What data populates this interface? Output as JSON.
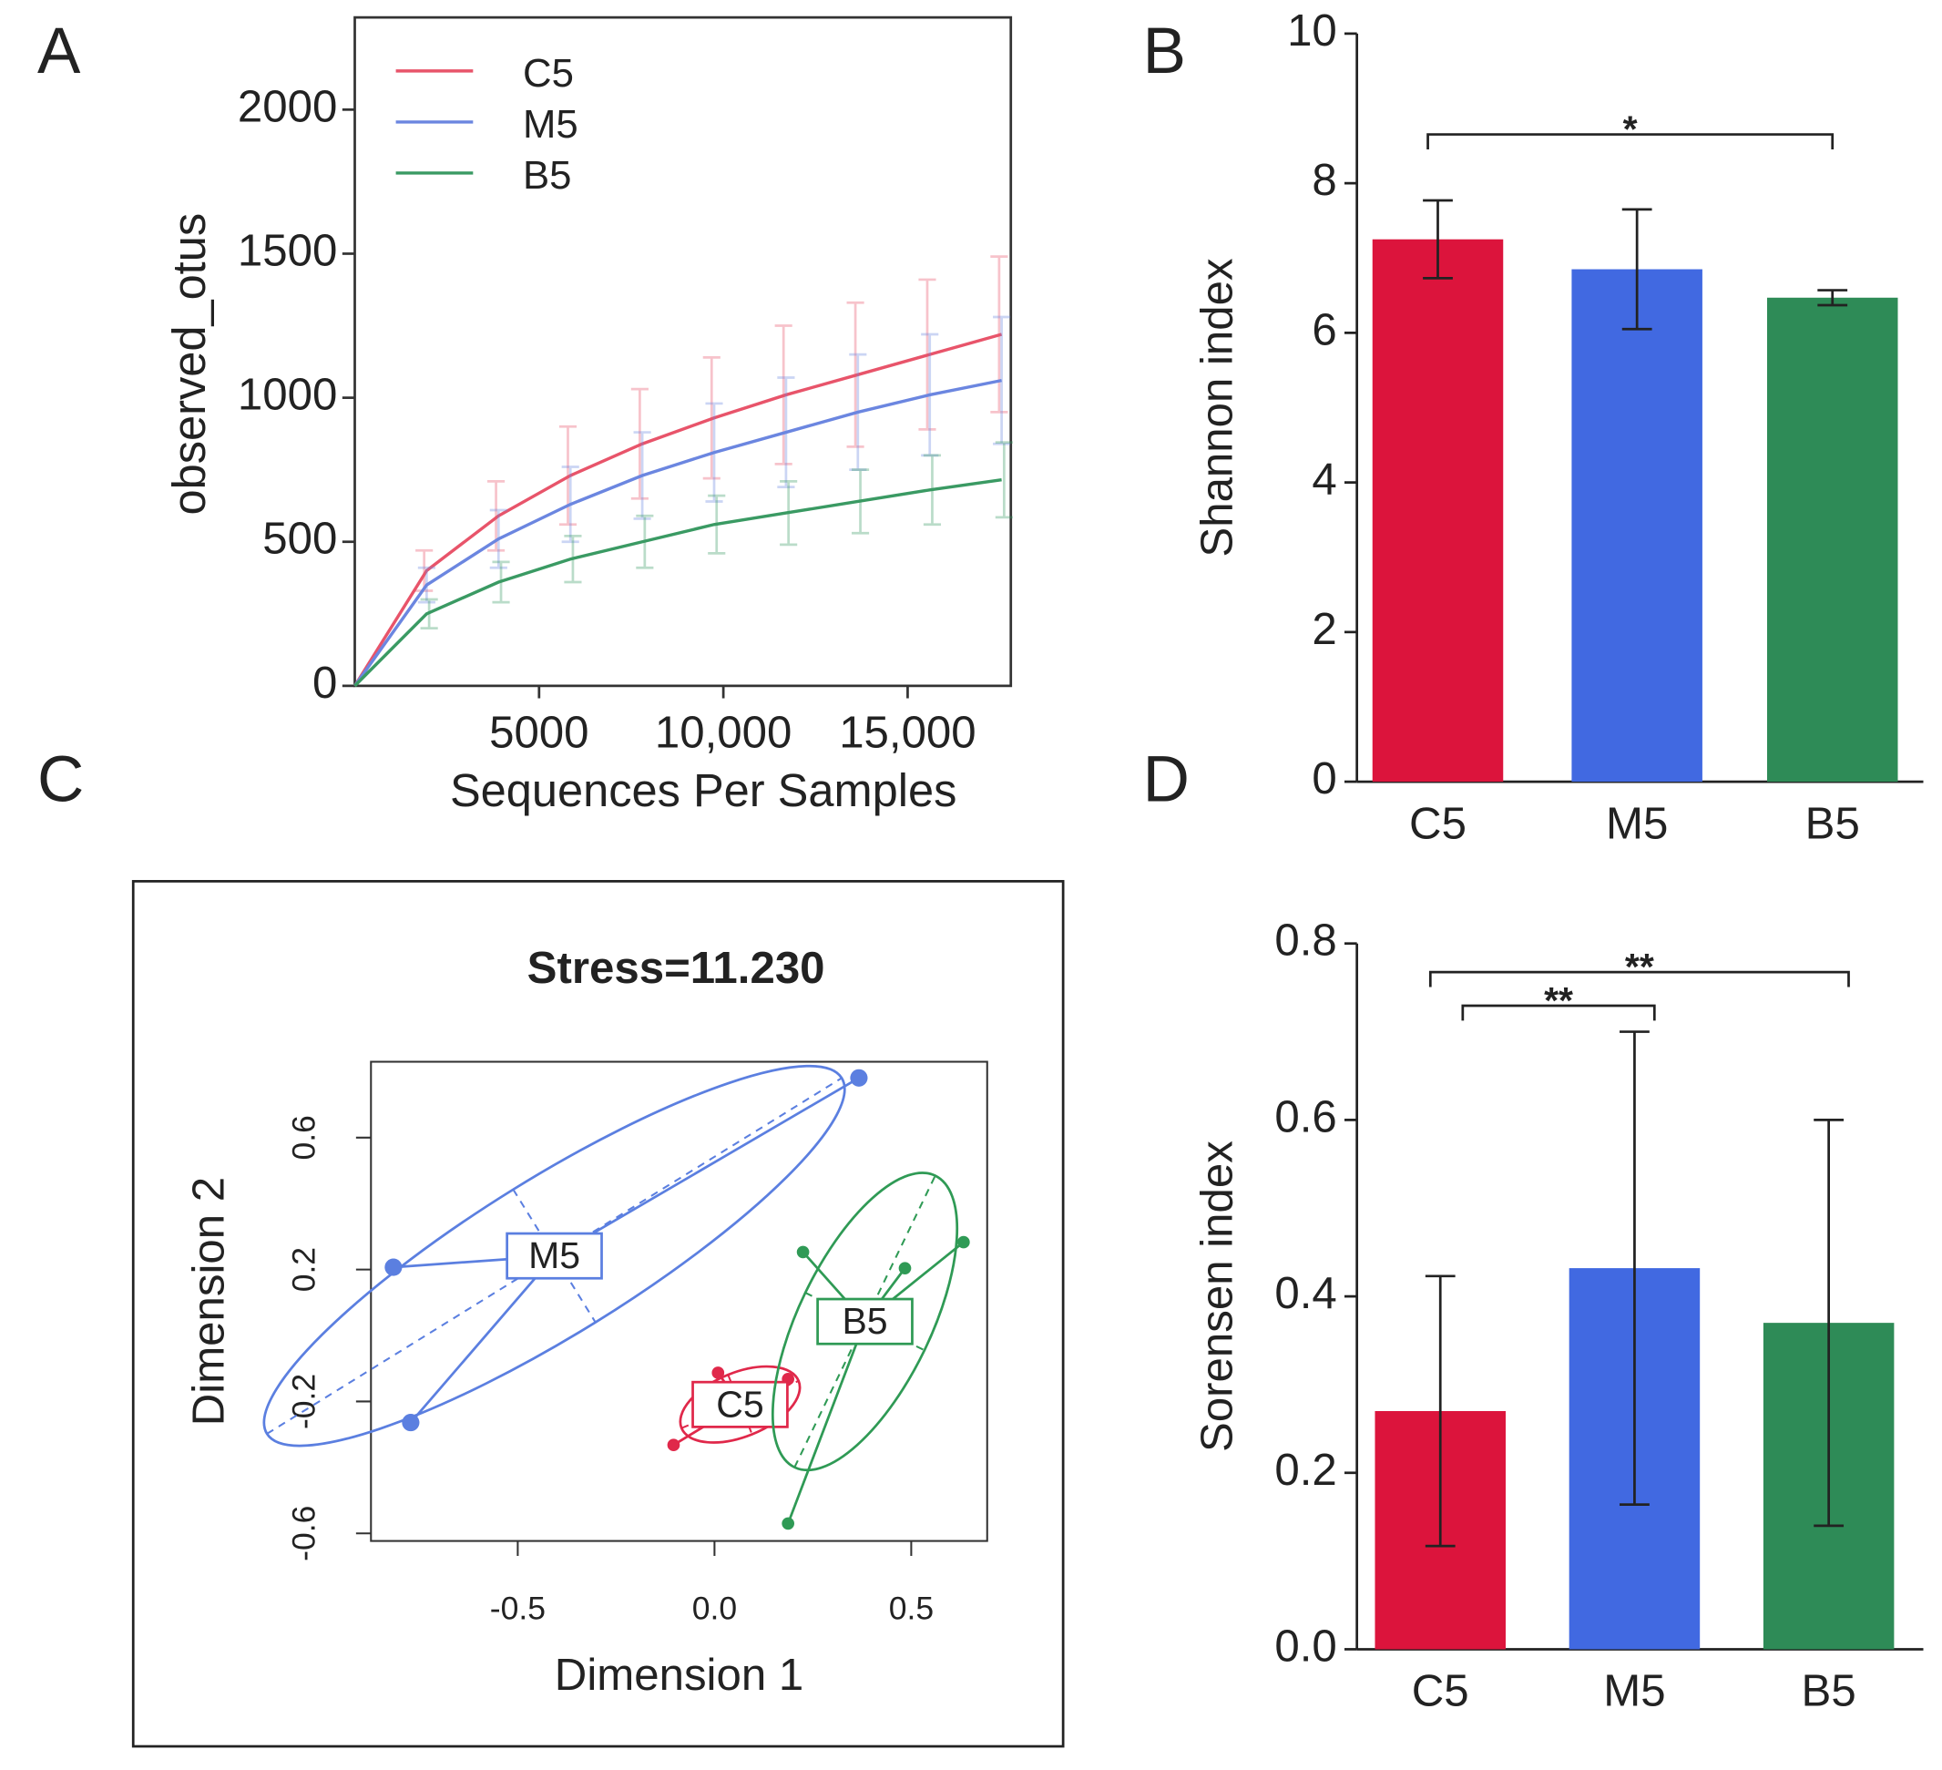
{
  "chart_data": [
    {
      "panel": "A",
      "type": "line",
      "ylabel": "observed_otus",
      "xlabel": "Sequences Per Samples",
      "x": [
        0,
        1950,
        3900,
        5850,
        7800,
        9750,
        11700,
        13650,
        15600,
        17550
      ],
      "xlim": [
        0,
        17800
      ],
      "ylim": [
        0,
        2320
      ],
      "xticks": [
        5000,
        {
          "value": 10000,
          "label": "10,000"
        },
        {
          "value": 15000,
          "label": "15,000"
        }
      ],
      "yticks": [
        0,
        500,
        1000,
        1500,
        2000
      ],
      "series": [
        {
          "name": "C5",
          "color": "#e8546a",
          "values": [
            0,
            400,
            590,
            730,
            840,
            930,
            1010,
            1080,
            1150,
            1220
          ],
          "errors": [
            null,
            70,
            120,
            170,
            190,
            210,
            240,
            250,
            260,
            270
          ]
        },
        {
          "name": "M5",
          "color": "#6b86e0",
          "values": [
            0,
            350,
            510,
            630,
            730,
            810,
            880,
            950,
            1010,
            1060
          ],
          "errors": [
            null,
            60,
            100,
            130,
            150,
            170,
            190,
            200,
            210,
            220
          ]
        },
        {
          "name": "B5",
          "color": "#3a9a63",
          "values": [
            0,
            250,
            360,
            440,
            500,
            560,
            600,
            640,
            680,
            715
          ],
          "errors": [
            null,
            50,
            70,
            80,
            90,
            100,
            110,
            110,
            120,
            130
          ]
        }
      ]
    },
    {
      "panel": "B",
      "type": "bar",
      "ylabel": "Shannon index",
      "categories": [
        "C5",
        "M5",
        "B5"
      ],
      "values": [
        7.25,
        6.85,
        6.47
      ],
      "errors": [
        0.52,
        0.8,
        0.1
      ],
      "colors": [
        "#dc143c",
        "#4169e1",
        "#2e8b57"
      ],
      "ylim": [
        0,
        10
      ],
      "yticks": [
        0,
        2,
        4,
        6,
        8,
        10
      ],
      "annotations": [
        {
          "text": "*",
          "from": 0,
          "to": 2
        }
      ]
    },
    {
      "panel": "C",
      "type": "scatter",
      "title": "Stress=11.230",
      "xlabel": "Dimension 1",
      "ylabel": "Dimension 2",
      "xlim": [
        -0.873,
        0.693
      ],
      "ylim": [
        -0.623,
        0.83
      ],
      "xticks": [
        -0.5,
        {
          "value": 0,
          "label": "0.0"
        },
        0.5
      ],
      "yticks": [
        -0.6,
        -0.2,
        0.2,
        0.6
      ],
      "series": [
        {
          "name": "M5",
          "color": "#5b7fe0",
          "x": [
            -0.816,
            0.367,
            -0.772
          ],
          "values": [
            0.207,
            0.781,
            -0.264
          ]
        },
        {
          "name": "C5",
          "color": "#e0284a",
          "x": [
            -0.104,
            0.009,
            0.187,
            0.168
          ],
          "values": [
            -0.332,
            -0.113,
            -0.132,
            -0.26
          ]
        },
        {
          "name": "B5",
          "color": "#2f9a55",
          "x": [
            0.225,
            0.484,
            0.633,
            0.187
          ],
          "values": [
            0.253,
            0.204,
            0.283,
            -0.57
          ]
        }
      ]
    },
    {
      "panel": "D",
      "type": "bar",
      "ylabel": "Sorensen index",
      "categories": [
        "C5",
        "M5",
        "B5"
      ],
      "values": [
        0.27,
        0.432,
        0.37
      ],
      "errors": [
        0.153,
        0.268,
        0.23
      ],
      "colors": [
        "#dc143c",
        "#4169e1",
        "#2e8b57"
      ],
      "ylim": [
        0,
        0.8
      ],
      "yticks": [
        {
          "value": 0,
          "label": "0.0"
        },
        0.2,
        0.4,
        0.6,
        0.8
      ],
      "annotations": [
        {
          "text": "**",
          "from": 0,
          "to": 1
        },
        {
          "text": "**",
          "from": 0,
          "to": 2
        }
      ]
    }
  ]
}
